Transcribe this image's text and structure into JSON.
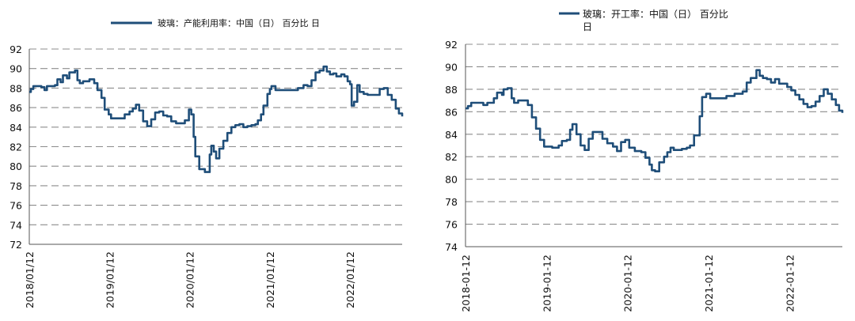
{
  "chart_data": [
    {
      "type": "line",
      "title": "",
      "series": [
        {
          "name": "玻璃：产能利用率：中国（日） 百分比 日",
          "color": "#1f4e79"
        }
      ],
      "legend_label": "玻璃：产能利用率：中国（日） 百分比 日",
      "xlabel": "",
      "ylabel": "",
      "ylim": [
        72,
        92
      ],
      "yticks": [
        "72",
        "74",
        "76",
        "78",
        "80",
        "82",
        "84",
        "86",
        "88",
        "90",
        "92"
      ],
      "xlim": [
        2018.03,
        2022.68
      ],
      "xticks": [
        {
          "x": 2018.03,
          "label": "2018/01/12"
        },
        {
          "x": 2019.03,
          "label": "2019/01/12"
        },
        {
          "x": 2020.03,
          "label": "2020/01/12"
        },
        {
          "x": 2021.03,
          "label": "2021/01/12"
        },
        {
          "x": 2022.03,
          "label": "2022/01/12"
        }
      ],
      "points": [
        [
          2018.03,
          87.6
        ],
        [
          2018.05,
          87.9
        ],
        [
          2018.08,
          88.2
        ],
        [
          2018.18,
          88.1
        ],
        [
          2018.22,
          87.8
        ],
        [
          2018.25,
          88.2
        ],
        [
          2018.35,
          88.3
        ],
        [
          2018.38,
          88.9
        ],
        [
          2018.42,
          88.6
        ],
        [
          2018.45,
          89.3
        ],
        [
          2018.5,
          89.0
        ],
        [
          2018.53,
          89.6
        ],
        [
          2018.6,
          89.8
        ],
        [
          2018.63,
          88.8
        ],
        [
          2018.66,
          88.5
        ],
        [
          2018.7,
          88.7
        ],
        [
          2018.78,
          88.9
        ],
        [
          2018.84,
          88.5
        ],
        [
          2018.88,
          87.8
        ],
        [
          2018.93,
          87.0
        ],
        [
          2018.97,
          85.8
        ],
        [
          2019.02,
          85.3
        ],
        [
          2019.05,
          84.9
        ],
        [
          2019.12,
          84.9
        ],
        [
          2019.2,
          84.9
        ],
        [
          2019.22,
          85.3
        ],
        [
          2019.28,
          85.6
        ],
        [
          2019.32,
          85.9
        ],
        [
          2019.36,
          86.3
        ],
        [
          2019.4,
          85.7
        ],
        [
          2019.45,
          84.6
        ],
        [
          2019.5,
          84.1
        ],
        [
          2019.55,
          84.8
        ],
        [
          2019.6,
          85.5
        ],
        [
          2019.65,
          85.6
        ],
        [
          2019.7,
          85.2
        ],
        [
          2019.75,
          85.1
        ],
        [
          2019.8,
          84.6
        ],
        [
          2019.86,
          84.4
        ],
        [
          2019.92,
          84.4
        ],
        [
          2019.97,
          84.7
        ],
        [
          2020.02,
          85.8
        ],
        [
          2020.05,
          85.3
        ],
        [
          2020.08,
          83.0
        ],
        [
          2020.1,
          81.0
        ],
        [
          2020.15,
          79.7
        ],
        [
          2020.22,
          79.4
        ],
        [
          2020.28,
          81.2
        ],
        [
          2020.3,
          82.1
        ],
        [
          2020.33,
          81.5
        ],
        [
          2020.36,
          80.8
        ],
        [
          2020.4,
          81.8
        ],
        [
          2020.45,
          82.6
        ],
        [
          2020.5,
          83.4
        ],
        [
          2020.55,
          84.0
        ],
        [
          2020.6,
          84.2
        ],
        [
          2020.65,
          84.3
        ],
        [
          2020.7,
          84.0
        ],
        [
          2020.75,
          84.1
        ],
        [
          2020.8,
          84.2
        ],
        [
          2020.85,
          84.3
        ],
        [
          2020.88,
          84.7
        ],
        [
          2020.92,
          85.3
        ],
        [
          2020.95,
          86.2
        ],
        [
          2021.0,
          87.4
        ],
        [
          2021.03,
          87.9
        ],
        [
          2021.05,
          88.2
        ],
        [
          2021.1,
          87.8
        ],
        [
          2021.2,
          87.8
        ],
        [
          2021.3,
          87.8
        ],
        [
          2021.38,
          88.0
        ],
        [
          2021.45,
          88.3
        ],
        [
          2021.5,
          88.2
        ],
        [
          2021.55,
          88.8
        ],
        [
          2021.6,
          89.6
        ],
        [
          2021.65,
          89.8
        ],
        [
          2021.7,
          90.2
        ],
        [
          2021.74,
          89.7
        ],
        [
          2021.78,
          89.4
        ],
        [
          2021.82,
          89.5
        ],
        [
          2021.86,
          89.2
        ],
        [
          2021.92,
          89.4
        ],
        [
          2021.96,
          89.2
        ],
        [
          2022.0,
          88.7
        ],
        [
          2022.03,
          88.4
        ],
        [
          2022.05,
          86.2
        ],
        [
          2022.08,
          86.6
        ],
        [
          2022.12,
          88.3
        ],
        [
          2022.15,
          87.6
        ],
        [
          2022.2,
          87.4
        ],
        [
          2022.25,
          87.3
        ],
        [
          2022.3,
          87.3
        ],
        [
          2022.35,
          87.3
        ],
        [
          2022.4,
          87.9
        ],
        [
          2022.45,
          88.0
        ],
        [
          2022.5,
          87.3
        ],
        [
          2022.55,
          86.8
        ],
        [
          2022.6,
          85.9
        ],
        [
          2022.64,
          85.4
        ],
        [
          2022.68,
          85.1
        ]
      ]
    },
    {
      "type": "line",
      "title": "",
      "series": [
        {
          "name": "玻璃：开工率：中国（日） 百分比 日",
          "color": "#1f4e79"
        }
      ],
      "legend_label_line1": "玻璃：开工率：中国（日） 百分比",
      "legend_label_line2": "日",
      "xlabel": "",
      "ylabel": "",
      "ylim": [
        74,
        92
      ],
      "yticks": [
        "74",
        "76",
        "78",
        "80",
        "82",
        "84",
        "86",
        "88",
        "90",
        "92"
      ],
      "xlim": [
        2018.03,
        2022.68
      ],
      "xticks": [
        {
          "x": 2018.03,
          "label": "2018-01-12"
        },
        {
          "x": 2019.03,
          "label": "2019-01-12"
        },
        {
          "x": 2020.03,
          "label": "2020-01-12"
        },
        {
          "x": 2021.03,
          "label": "2021-01-12"
        },
        {
          "x": 2022.03,
          "label": "2022-01-12"
        }
      ],
      "points": [
        [
          2018.03,
          86.3
        ],
        [
          2018.06,
          86.5
        ],
        [
          2018.1,
          86.8
        ],
        [
          2018.2,
          86.8
        ],
        [
          2018.25,
          86.6
        ],
        [
          2018.3,
          86.8
        ],
        [
          2018.38,
          87.2
        ],
        [
          2018.42,
          87.7
        ],
        [
          2018.48,
          87.5
        ],
        [
          2018.5,
          88.0
        ],
        [
          2018.55,
          88.1
        ],
        [
          2018.6,
          87.2
        ],
        [
          2018.63,
          86.8
        ],
        [
          2018.68,
          87.0
        ],
        [
          2018.75,
          87.0
        ],
        [
          2018.8,
          86.6
        ],
        [
          2018.85,
          85.5
        ],
        [
          2018.9,
          84.5
        ],
        [
          2018.95,
          83.5
        ],
        [
          2019.0,
          82.9
        ],
        [
          2019.1,
          82.8
        ],
        [
          2019.18,
          83.0
        ],
        [
          2019.22,
          83.4
        ],
        [
          2019.28,
          83.5
        ],
        [
          2019.32,
          84.4
        ],
        [
          2019.35,
          84.9
        ],
        [
          2019.4,
          84.0
        ],
        [
          2019.45,
          83.0
        ],
        [
          2019.5,
          82.6
        ],
        [
          2019.55,
          83.6
        ],
        [
          2019.6,
          84.2
        ],
        [
          2019.65,
          84.2
        ],
        [
          2019.72,
          83.6
        ],
        [
          2019.78,
          83.2
        ],
        [
          2019.85,
          82.9
        ],
        [
          2019.9,
          82.5
        ],
        [
          2019.95,
          83.3
        ],
        [
          2020.0,
          83.5
        ],
        [
          2020.05,
          82.8
        ],
        [
          2020.12,
          82.5
        ],
        [
          2020.2,
          82.4
        ],
        [
          2020.25,
          81.9
        ],
        [
          2020.3,
          81.3
        ],
        [
          2020.33,
          80.8
        ],
        [
          2020.37,
          80.7
        ],
        [
          2020.42,
          81.5
        ],
        [
          2020.48,
          82.0
        ],
        [
          2020.52,
          82.4
        ],
        [
          2020.56,
          82.8
        ],
        [
          2020.6,
          82.6
        ],
        [
          2020.65,
          82.6
        ],
        [
          2020.7,
          82.7
        ],
        [
          2020.76,
          82.8
        ],
        [
          2020.8,
          83.0
        ],
        [
          2020.85,
          83.9
        ],
        [
          2020.9,
          83.9
        ],
        [
          2020.92,
          85.6
        ],
        [
          2020.95,
          87.3
        ],
        [
          2021.0,
          87.6
        ],
        [
          2021.05,
          87.2
        ],
        [
          2021.15,
          87.2
        ],
        [
          2021.25,
          87.4
        ],
        [
          2021.35,
          87.6
        ],
        [
          2021.45,
          87.8
        ],
        [
          2021.5,
          88.6
        ],
        [
          2021.55,
          89.0
        ],
        [
          2021.62,
          89.7
        ],
        [
          2021.66,
          89.2
        ],
        [
          2021.7,
          89.0
        ],
        [
          2021.75,
          88.9
        ],
        [
          2021.8,
          88.6
        ],
        [
          2021.85,
          88.9
        ],
        [
          2021.9,
          88.5
        ],
        [
          2021.95,
          88.5
        ],
        [
          2022.0,
          88.2
        ],
        [
          2022.05,
          87.9
        ],
        [
          2022.1,
          87.5
        ],
        [
          2022.15,
          87.1
        ],
        [
          2022.2,
          86.7
        ],
        [
          2022.25,
          86.4
        ],
        [
          2022.3,
          86.5
        ],
        [
          2022.35,
          86.9
        ],
        [
          2022.4,
          87.4
        ],
        [
          2022.45,
          88.0
        ],
        [
          2022.5,
          87.6
        ],
        [
          2022.55,
          87.1
        ],
        [
          2022.6,
          86.6
        ],
        [
          2022.64,
          86.1
        ],
        [
          2022.68,
          85.9
        ]
      ]
    }
  ]
}
